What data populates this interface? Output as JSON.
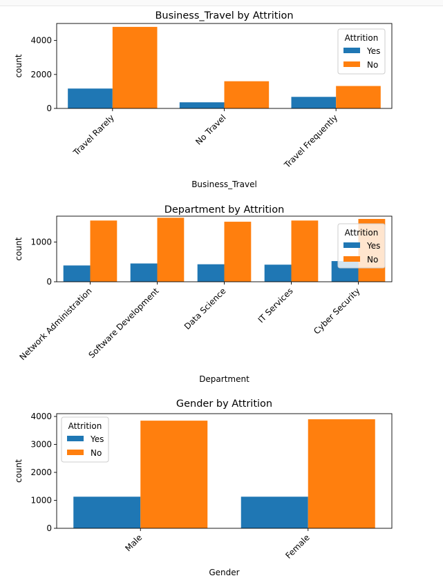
{
  "colors": {
    "Yes": "#1f77b4",
    "No": "#ff7f0e"
  },
  "chart_data": [
    {
      "type": "bar",
      "title": "Business_Travel by Attrition",
      "xlabel": "Business_Travel",
      "ylabel": "count",
      "categories": [
        "Travel Rarely",
        "No Travel",
        "Travel Frequently"
      ],
      "series": [
        {
          "name": "Yes",
          "values": [
            1170,
            360,
            680
          ]
        },
        {
          "name": "No",
          "values": [
            4800,
            1600,
            1320
          ]
        }
      ],
      "ylim": [
        0,
        5000
      ],
      "yticks": [
        0,
        2000,
        4000
      ],
      "legend": {
        "title": "Attrition",
        "position": "upper right"
      }
    },
    {
      "type": "bar",
      "title": "Department by Attrition",
      "xlabel": "Department",
      "ylabel": "count",
      "categories": [
        "Network Administration",
        "Software Development",
        "Data Science",
        "IT Services",
        "Cyber Security"
      ],
      "series": [
        {
          "name": "Yes",
          "values": [
            410,
            460,
            440,
            430,
            520
          ]
        },
        {
          "name": "No",
          "values": [
            1540,
            1610,
            1510,
            1540,
            1580
          ]
        }
      ],
      "ylim": [
        0,
        1650
      ],
      "yticks": [
        0,
        1000
      ],
      "legend": {
        "title": "Attrition",
        "position": "upper right"
      }
    },
    {
      "type": "bar",
      "title": "Gender by Attrition",
      "xlabel": "Gender",
      "ylabel": "count",
      "categories": [
        "Male",
        "Female"
      ],
      "series": [
        {
          "name": "Yes",
          "values": [
            1130,
            1130
          ]
        },
        {
          "name": "No",
          "values": [
            3850,
            3900
          ]
        }
      ],
      "ylim": [
        0,
        4100
      ],
      "yticks": [
        0,
        1000,
        2000,
        3000,
        4000
      ],
      "legend": {
        "title": "Attrition",
        "position": "upper left"
      }
    }
  ]
}
